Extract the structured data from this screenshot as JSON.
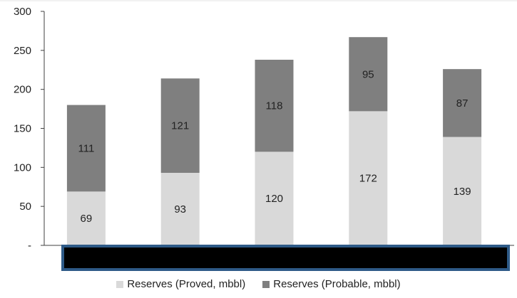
{
  "chart_data": {
    "type": "bar",
    "stacked": true,
    "categories": [
      "",
      "",
      "",
      "",
      ""
    ],
    "series": [
      {
        "name": "Reserves (Proved, mbbl)",
        "values": [
          69,
          93,
          120,
          172,
          139
        ],
        "color": "#d9d9d9"
      },
      {
        "name": "Reserves (Probable, mbbl)",
        "values": [
          111,
          121,
          118,
          95,
          87
        ],
        "color": "#7f7f7f"
      }
    ],
    "y_ticks": [
      "-",
      "50",
      "100",
      "150",
      "200",
      "250",
      "300"
    ],
    "ylim": [
      0,
      300
    ],
    "grid": false,
    "legend_position": "bottom",
    "category_axis_label_box": {
      "fill": "#000000",
      "border": "#2e5a87"
    }
  }
}
